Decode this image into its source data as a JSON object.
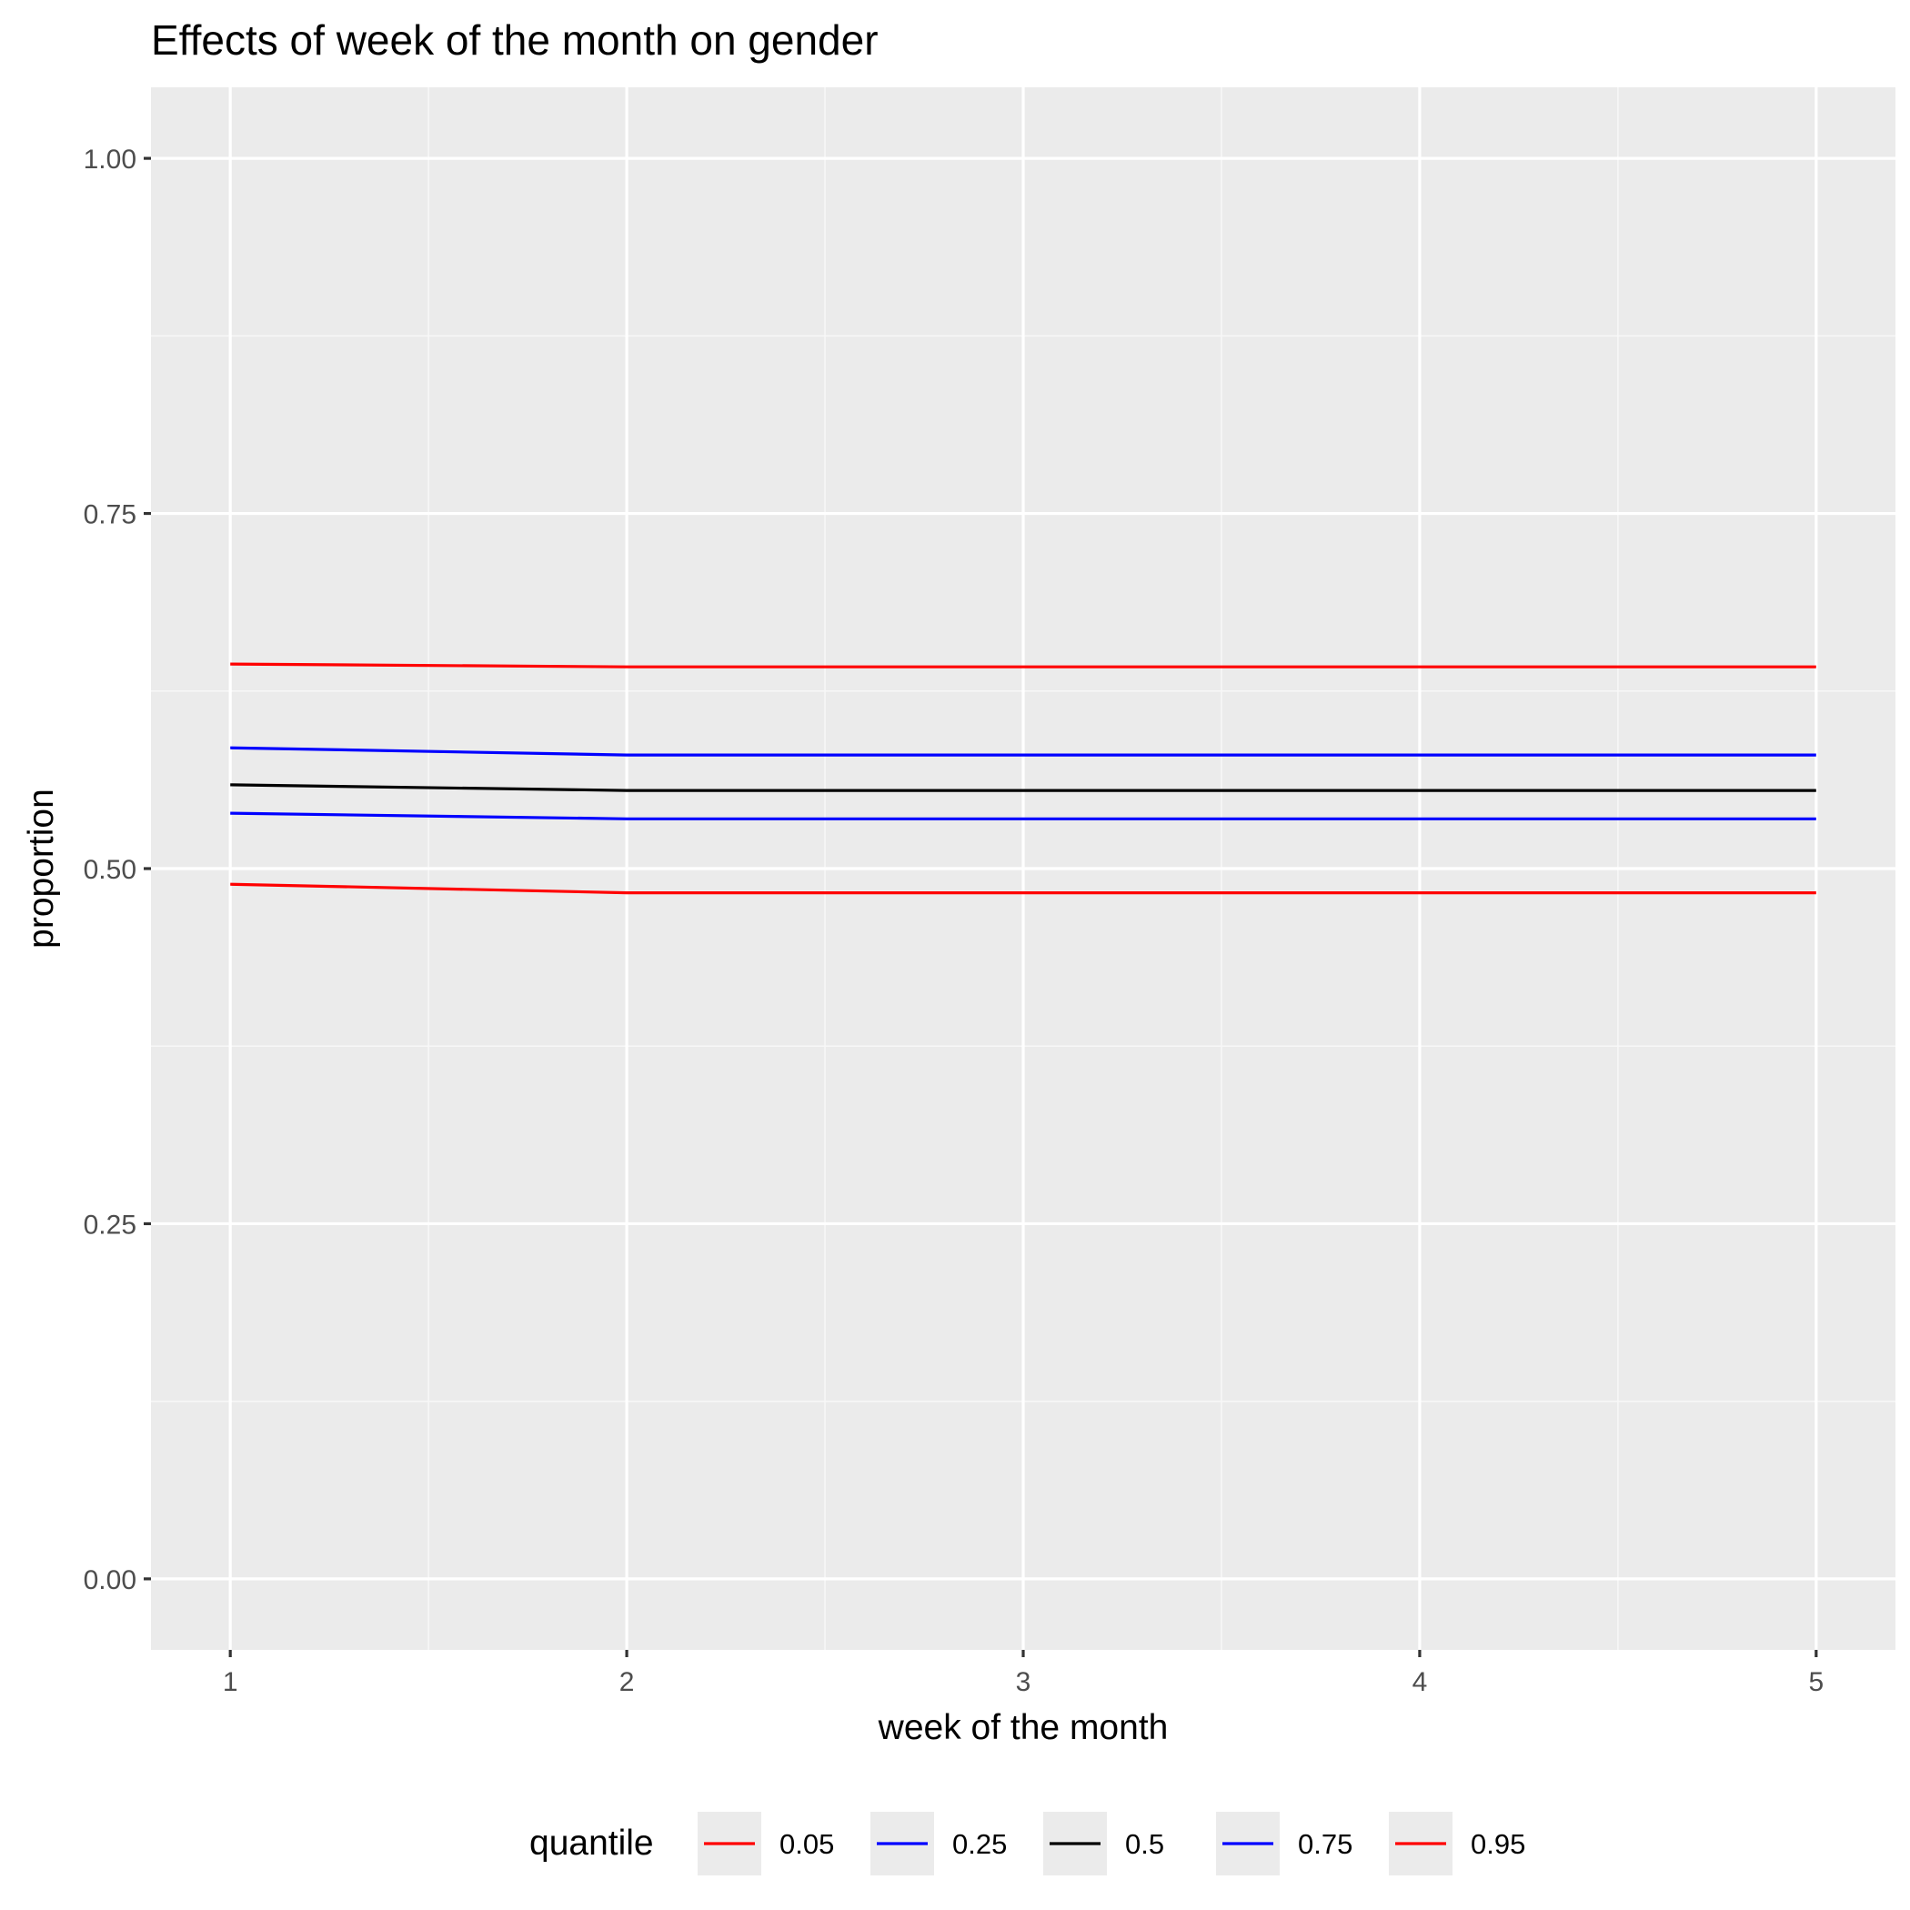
{
  "chart_data": {
    "type": "line",
    "title": "Effects of week of the month on gender",
    "xlabel": "week of the month",
    "ylabel": "proportion",
    "x": [
      1,
      2,
      3,
      4,
      5
    ],
    "xlim": [
      0.8,
      5.2
    ],
    "ylim": [
      -0.05,
      1.05
    ],
    "x_ticks": [
      "1",
      "2",
      "3",
      "4",
      "5"
    ],
    "y_ticks": [
      "0.00",
      "0.25",
      "0.50",
      "0.75",
      "1.00"
    ],
    "grid": true,
    "legend_position": "bottom",
    "legend_title": "quantile",
    "series": [
      {
        "name": "0.05",
        "color": "#ff0000",
        "values": [
          0.489,
          0.483,
          0.483,
          0.483,
          0.483
        ]
      },
      {
        "name": "0.25",
        "color": "#0000ff",
        "values": [
          0.539,
          0.535,
          0.535,
          0.535,
          0.535
        ]
      },
      {
        "name": "0.5",
        "color": "#000000",
        "values": [
          0.559,
          0.555,
          0.555,
          0.555,
          0.555
        ]
      },
      {
        "name": "0.75",
        "color": "#0000ff",
        "values": [
          0.585,
          0.58,
          0.58,
          0.58,
          0.58
        ]
      },
      {
        "name": "0.95",
        "color": "#ff0000",
        "values": [
          0.644,
          0.642,
          0.642,
          0.642,
          0.642
        ]
      }
    ]
  }
}
